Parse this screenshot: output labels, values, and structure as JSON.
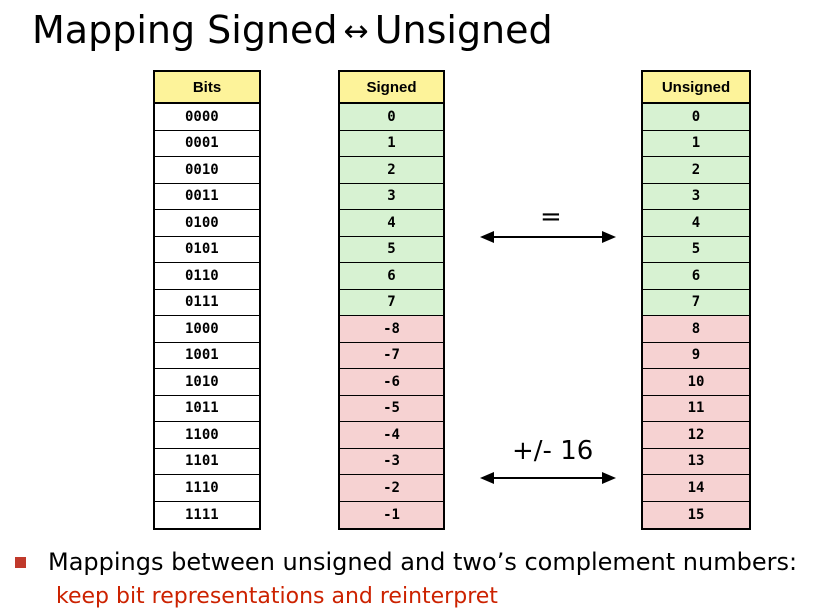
{
  "title": {
    "left": "Mapping Signed",
    "arrow": "↔",
    "right": "Unsigned"
  },
  "bits_table": {
    "header": "Bits",
    "rows": [
      "0000",
      "0001",
      "0010",
      "0011",
      "0100",
      "0101",
      "0110",
      "0111",
      "1000",
      "1001",
      "1010",
      "1011",
      "1100",
      "1101",
      "1110",
      "1111"
    ]
  },
  "signed_table": {
    "header": "Signed",
    "rows": [
      "0",
      "1",
      "2",
      "3",
      "4",
      "5",
      "6",
      "7",
      "-8",
      "-7",
      "-6",
      "-5",
      "-4",
      "-3",
      "-2",
      "-1"
    ]
  },
  "unsigned_table": {
    "header": "Unsigned",
    "rows": [
      "0",
      "1",
      "2",
      "3",
      "4",
      "5",
      "6",
      "7",
      "8",
      "9",
      "10",
      "11",
      "12",
      "13",
      "14",
      "15"
    ]
  },
  "arrows": {
    "equal_label": "=",
    "offset_label": "+/- 16"
  },
  "bullet": {
    "text": "Mappings between unsigned and two’s complement numbers:",
    "subtext": "keep bit representations and reinterpret"
  },
  "colors": {
    "header_bg": "#fdf39a",
    "positive_bg": "#d7f2d2",
    "negative_bg": "#f6d2d2",
    "bullet_marker": "#c0392b",
    "subtext": "#cc2200"
  }
}
